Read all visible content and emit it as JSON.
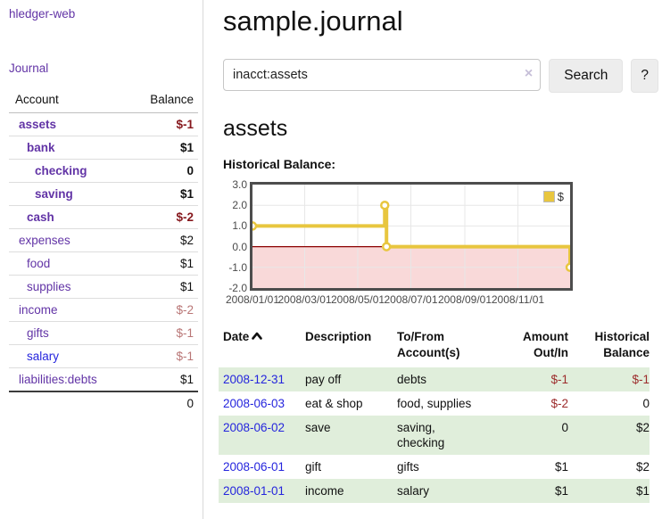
{
  "app": {
    "brand": "hledger-web",
    "nav_journal": "Journal"
  },
  "sidebar": {
    "table_headers": {
      "account": "Account",
      "balance": "Balance"
    },
    "accounts": [
      {
        "name": "assets",
        "balance": "$-1",
        "level": 1,
        "bold": true,
        "neg": true,
        "blue": false
      },
      {
        "name": "bank",
        "balance": "$1",
        "level": 2,
        "bold": true,
        "neg": false,
        "blue": false
      },
      {
        "name": "checking",
        "balance": "0",
        "level": 3,
        "bold": true,
        "neg": false,
        "blue": false
      },
      {
        "name": "saving",
        "balance": "$1",
        "level": 3,
        "bold": true,
        "neg": false,
        "blue": false
      },
      {
        "name": "cash",
        "balance": "$-2",
        "level": 2,
        "bold": true,
        "neg": true,
        "blue": false
      },
      {
        "name": "expenses",
        "balance": "$2",
        "level": 1,
        "bold": false,
        "neg": false,
        "blue": false
      },
      {
        "name": "food",
        "balance": "$1",
        "level": 2,
        "bold": false,
        "neg": false,
        "blue": false
      },
      {
        "name": "supplies",
        "balance": "$1",
        "level": 2,
        "bold": false,
        "neg": false,
        "blue": false
      },
      {
        "name": "income",
        "balance": "$-2",
        "level": 1,
        "bold": false,
        "neg": true,
        "blue": false
      },
      {
        "name": "gifts",
        "balance": "$-1",
        "level": 2,
        "bold": false,
        "neg": true,
        "blue": false
      },
      {
        "name": "salary",
        "balance": "$-1",
        "level": 2,
        "bold": false,
        "neg": true,
        "blue": true
      },
      {
        "name": "liabilities:debts",
        "balance": "$1",
        "level": 1,
        "bold": false,
        "neg": false,
        "blue": false
      }
    ],
    "total": "0"
  },
  "header": {
    "title": "sample.journal"
  },
  "search": {
    "query": "inacct:assets",
    "clear_icon": "×",
    "button": "Search",
    "help_button": "?"
  },
  "main": {
    "account_heading": "assets",
    "chart_label": "Historical Balance:"
  },
  "chart_data": {
    "type": "line",
    "mode": "step-after",
    "title": "Historical Balance:",
    "x_range": [
      "2008-01-01",
      "2008-12-31"
    ],
    "ylim": [
      -2,
      3
    ],
    "series": [
      {
        "name": "$",
        "color": "#e8c63f",
        "points": [
          [
            "2008-01-01",
            1
          ],
          [
            "2008-06-01",
            2
          ],
          [
            "2008-06-03",
            0
          ],
          [
            "2008-12-31",
            -1
          ]
        ]
      }
    ],
    "yticks": [
      {
        "value": 3,
        "label": "3.0"
      },
      {
        "value": 2,
        "label": "2.0"
      },
      {
        "value": 1,
        "label": "1.0"
      },
      {
        "value": 0,
        "label": "0.0"
      },
      {
        "value": -1,
        "label": "-1.0"
      },
      {
        "value": -2,
        "label": "-2.0"
      }
    ],
    "xticks": [
      {
        "date": "2008-01-01",
        "label": "2008/01/01"
      },
      {
        "date": "2008-03-01",
        "label": "2008/03/01"
      },
      {
        "date": "2008-05-01",
        "label": "2008/05/01"
      },
      {
        "date": "2008-07-01",
        "label": "2008/07/01"
      },
      {
        "date": "2008-09-01",
        "label": "2008/09/01"
      },
      {
        "date": "2008-11-01",
        "label": "2008/11/01"
      }
    ],
    "grid": true,
    "legend_position": "top-right",
    "zero_line_color": "#8b0000",
    "negative_fill": "#f9d9d9"
  },
  "register": {
    "headers": [
      [
        "Date",
        ""
      ],
      [
        "Description",
        ""
      ],
      [
        "To/From",
        "Account(s)"
      ],
      [
        "Amount",
        "Out/In"
      ],
      [
        "Historical",
        "Balance"
      ]
    ],
    "sort_icon": "chevron-up-icon",
    "rows": [
      {
        "date": "2008-12-31",
        "description": "pay off",
        "accounts": "debts",
        "amount": "$-1",
        "balance": "$-1"
      },
      {
        "date": "2008-06-03",
        "description": "eat & shop",
        "accounts": "food, supplies",
        "amount": "$-2",
        "balance": "0"
      },
      {
        "date": "2008-06-02",
        "description": "save",
        "accounts": "saving, checking",
        "amount": "0",
        "balance": "$2"
      },
      {
        "date": "2008-06-01",
        "description": "gift",
        "accounts": "gifts",
        "amount": "$1",
        "balance": "$2"
      },
      {
        "date": "2008-01-01",
        "description": "income",
        "accounts": "salary",
        "amount": "$1",
        "balance": "$1"
      }
    ]
  },
  "colors": {
    "link_purple": "#6234a6",
    "link_blue": "#2525dd",
    "negative_bold": "#86181d",
    "negative_light": "#b97676",
    "negative_table": "#9c2b2b",
    "row_stripe_green": "#e0eedb",
    "chart_line_gold": "#e8c63f",
    "chart_negative_fill": "#f9d9d9",
    "chart_zero_line": "#8b0000"
  }
}
